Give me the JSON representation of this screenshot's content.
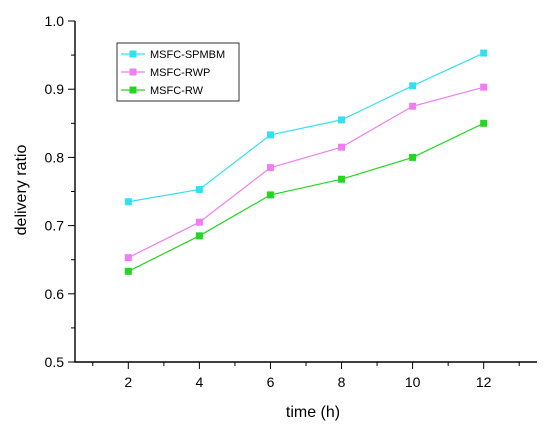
{
  "chart_data": {
    "type": "line",
    "xlabel": "time (h)",
    "ylabel": "delivery ratio",
    "x": [
      2,
      4,
      6,
      8,
      10,
      12
    ],
    "xlim": [
      0.5,
      13.5
    ],
    "ylim": [
      0.5,
      1.0
    ],
    "xticks": [
      "2",
      "4",
      "6",
      "8",
      "10",
      "12"
    ],
    "yticks": [
      "0.5",
      "0.6",
      "0.7",
      "0.8",
      "0.9",
      "1.0"
    ],
    "grid": false,
    "legend_position": "top-left",
    "series": [
      {
        "name": "MSFC-SPMBM",
        "color": "#33e0f0",
        "marker": "square",
        "values": [
          0.735,
          0.753,
          0.833,
          0.855,
          0.905,
          0.953
        ]
      },
      {
        "name": "MSFC-RWP",
        "color": "#f07ef0",
        "marker": "square",
        "values": [
          0.653,
          0.705,
          0.785,
          0.815,
          0.875,
          0.903
        ]
      },
      {
        "name": "MSFC-RW",
        "color": "#22d622",
        "marker": "square",
        "values": [
          0.633,
          0.685,
          0.745,
          0.768,
          0.8,
          0.85
        ]
      }
    ]
  }
}
